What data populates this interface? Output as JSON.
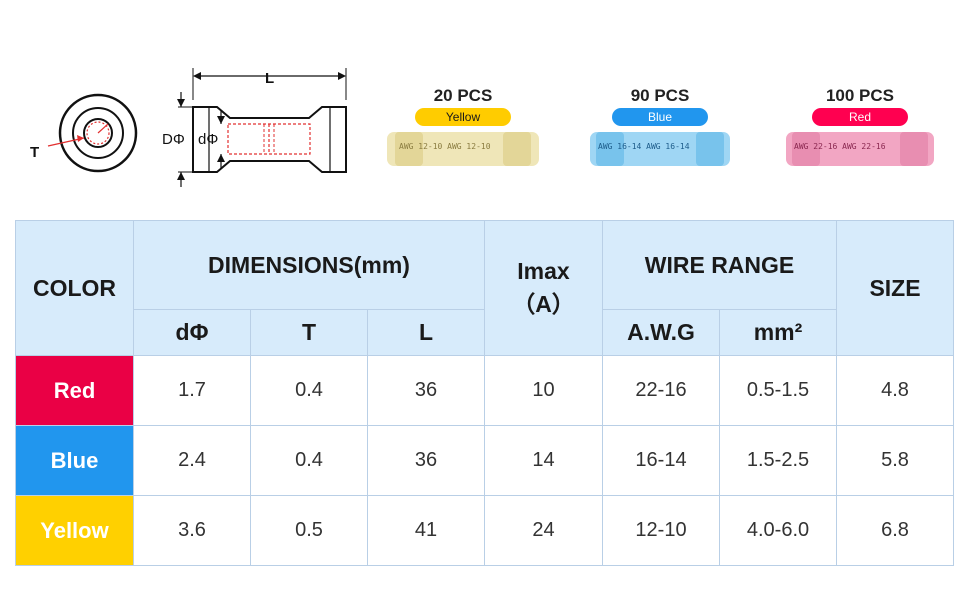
{
  "drawing": {
    "t_label": "T",
    "l_label": "L",
    "d_outer_label": "DΦ",
    "d_inner_label": "dΦ"
  },
  "products": [
    {
      "count": "20 PCS",
      "color_name": "Yellow",
      "marking": "AWG 12-10  AWG 12-10",
      "pill_color": "#ffcc00",
      "sleeve_color": "#efe6b8",
      "band_color": "#d9c97e",
      "text_color": "#1a1a1a"
    },
    {
      "count": "90 PCS",
      "color_name": "Blue",
      "marking": "AWG 16-14  AWG 16-14",
      "pill_color": "#2196ee",
      "sleeve_color": "#9fd6f4",
      "band_color": "#57b5e6",
      "text_color": "#ffffff"
    },
    {
      "count": "100 PCS",
      "color_name": "Red",
      "marking": "AWG 22-16  AWG 22-16",
      "pill_color": "#ff0050",
      "sleeve_color": "#f2a6c3",
      "band_color": "#e07aa3",
      "text_color": "#ffffff"
    }
  ],
  "table": {
    "headers": {
      "color": "COLOR",
      "dimensions": "DIMENSIONS(mm)",
      "imax": "Imax",
      "imax_unit": "（A）",
      "wire_range": "WIRE RANGE",
      "size": "SIZE",
      "d_phi": "dΦ",
      "t": "T",
      "l": "L",
      "awg": "A.W.G",
      "mm2": "mm²"
    },
    "rows": [
      {
        "color": "Red",
        "swatch": "#ea0045",
        "d": "1.7",
        "t": "0.4",
        "l": "36",
        "imax": "10",
        "awg": "22-16",
        "mm2": "0.5-1.5",
        "size": "4.8"
      },
      {
        "color": "Blue",
        "swatch": "#2196ee",
        "d": "2.4",
        "t": "0.4",
        "l": "36",
        "imax": "14",
        "awg": "16-14",
        "mm2": "1.5-2.5",
        "size": "5.8"
      },
      {
        "color": "Yellow",
        "swatch": "#ffd000",
        "d": "3.6",
        "t": "0.5",
        "l": "41",
        "imax": "24",
        "awg": "12-10",
        "mm2": "4.0-6.0",
        "size": "6.8"
      }
    ]
  }
}
